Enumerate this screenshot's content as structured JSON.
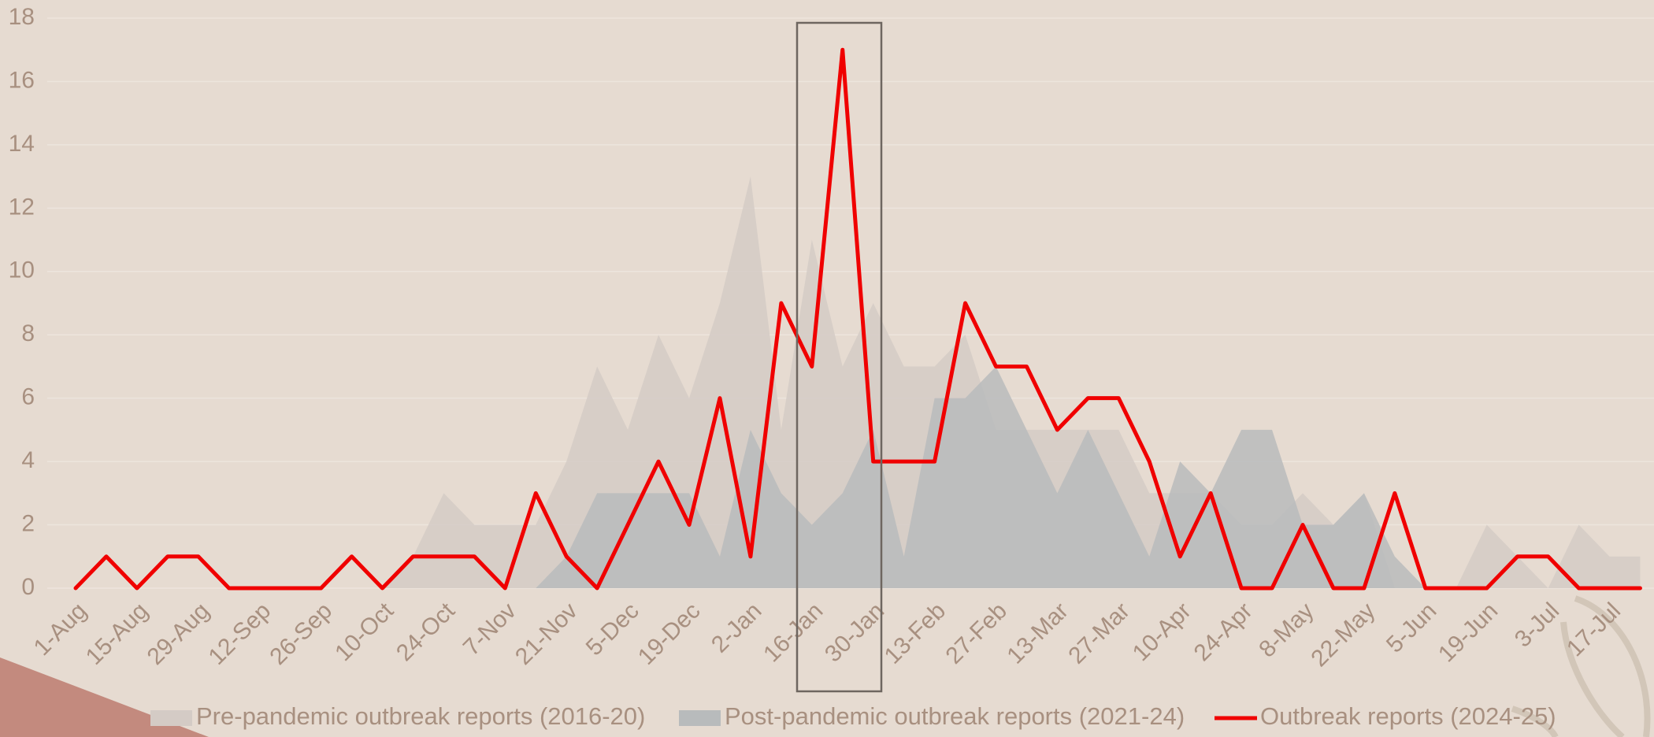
{
  "chart_data": {
    "type": "line",
    "categories": [
      "1-Aug",
      null,
      "15-Aug",
      null,
      "29-Aug",
      null,
      "12-Sep",
      null,
      "26-Sep",
      null,
      "10-Oct",
      null,
      "24-Oct",
      null,
      "7-Nov",
      null,
      "21-Nov",
      null,
      "5-Dec",
      null,
      "19-Dec",
      null,
      "2-Jan",
      null,
      "16-Jan",
      null,
      "30-Jan",
      null,
      "13-Feb",
      null,
      "27-Feb",
      null,
      "13-Mar",
      null,
      "27-Mar",
      null,
      "10-Apr",
      null,
      "24-Apr",
      null,
      "8-May",
      null,
      "22-May",
      null,
      "5-Jun",
      null,
      "19-Jun",
      null,
      "3-Jul",
      null,
      "17-Jul",
      null
    ],
    "series": [
      {
        "name": "Pre-pandemic outbreak reports (2016-20)",
        "kind": "area",
        "color": "#d4cbc5",
        "values": [
          0,
          0,
          0,
          0,
          0,
          0,
          0,
          0,
          0,
          0,
          0,
          1,
          3,
          2,
          2,
          2,
          4,
          7,
          5,
          8,
          6,
          9,
          13,
          5,
          11,
          7,
          9,
          7,
          7,
          8,
          5,
          5,
          5,
          5,
          5,
          3,
          3,
          3,
          2,
          2,
          3,
          2,
          3,
          0,
          0,
          0,
          2,
          1,
          0,
          2,
          1,
          1
        ]
      },
      {
        "name": "Post-pandemic outbreak reports (2021-24)",
        "kind": "area",
        "color": "#b8bbbc",
        "values": [
          0,
          0,
          0,
          0,
          0,
          0,
          0,
          0,
          0,
          0,
          0,
          0,
          0,
          0,
          0,
          0,
          1,
          3,
          3,
          3,
          3,
          1,
          5,
          3,
          2,
          3,
          5,
          1,
          6,
          6,
          7,
          5,
          3,
          5,
          3,
          1,
          4,
          3,
          5,
          5,
          2,
          2,
          3,
          1,
          0,
          0,
          0,
          0,
          0,
          0,
          0,
          0
        ]
      },
      {
        "name": "Outbreak reports (2024-25)",
        "kind": "line",
        "color": "#f00000",
        "values": [
          0,
          1,
          0,
          1,
          1,
          0,
          0,
          0,
          0,
          1,
          0,
          1,
          1,
          1,
          0,
          3,
          1,
          0,
          2,
          4,
          2,
          6,
          1,
          9,
          7,
          17,
          4,
          4,
          4,
          9,
          7,
          7,
          5,
          6,
          6,
          4,
          1,
          3,
          0,
          0,
          2,
          0,
          0,
          3,
          0,
          0,
          0,
          1,
          1,
          0,
          0,
          0
        ]
      }
    ],
    "ylim": [
      0,
      18
    ],
    "yticks": [
      0,
      2,
      4,
      6,
      8,
      10,
      12,
      14,
      16,
      18
    ],
    "grid": true,
    "legend": "bottom"
  }
}
